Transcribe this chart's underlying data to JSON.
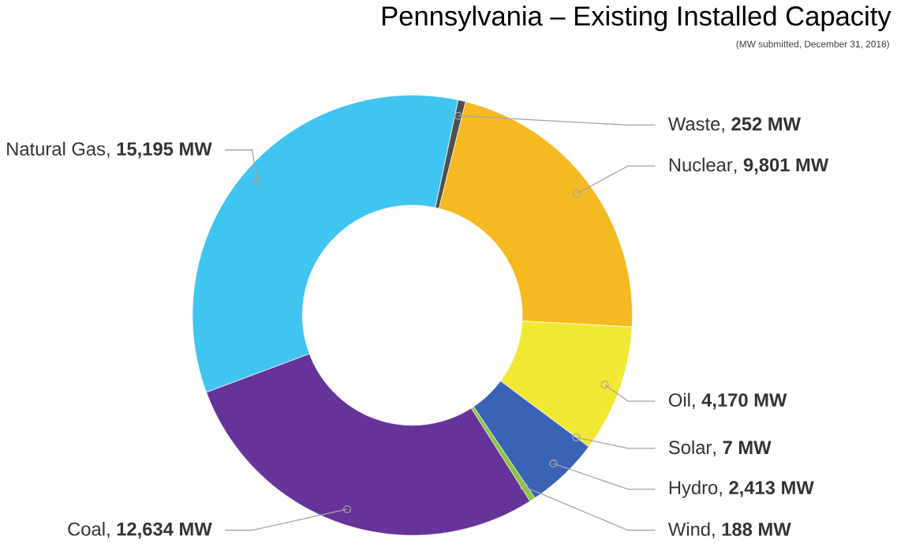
{
  "chart_data": {
    "type": "donut",
    "title": "Pennsylvania – Existing Installed Capacity",
    "subtitle": "(MW submitted, December 31, 2018)",
    "categories": [
      "Waste",
      "Nuclear",
      "Oil",
      "Solar",
      "Hydro",
      "Wind",
      "Coal",
      "Natural Gas"
    ],
    "values": [
      252,
      9801,
      4170,
      7,
      2413,
      188,
      12634,
      15195
    ],
    "value_labels": [
      ", **252 MW**",
      ", **9,801 MW**",
      ", **4,170 MW**",
      ", **7 MW**",
      ", **2,413 MW**",
      ", **188 MW**",
      ", **12,634 MW**",
      ", **15,195 MW**"
    ],
    "colors": [
      "#505050",
      "#f5b921",
      "#f0e832",
      "#e8407a",
      "#3b63b5",
      "#8cc63f",
      "#663399",
      "#40c4f0"
    ]
  }
}
